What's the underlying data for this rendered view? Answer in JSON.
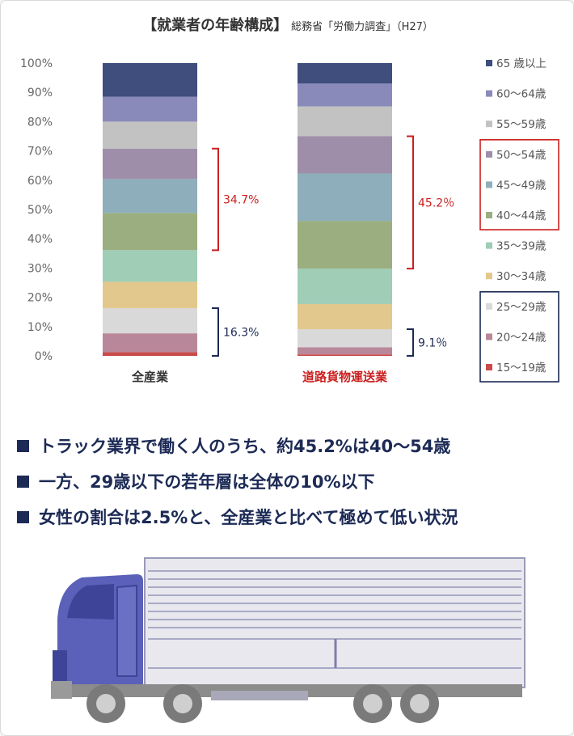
{
  "header": {
    "title": "【就業者の年齢構成】",
    "source": "総務省「労働力調査」（H27）"
  },
  "chart_data": {
    "type": "bar",
    "stacked": true,
    "ylim": [
      0,
      100
    ],
    "yticks": [
      "0%",
      "10%",
      "20%",
      "30%",
      "40%",
      "50%",
      "60%",
      "70%",
      "80%",
      "90%",
      "100%"
    ],
    "categories": [
      "全産業",
      "道路貨物運送業"
    ],
    "category_colors": [
      "#333333",
      "#cc1f1f"
    ],
    "series": [
      {
        "name": "15～19歳",
        "color": "#c94a4a",
        "values": [
          1.3,
          0.5
        ]
      },
      {
        "name": "20～24歳",
        "color": "#b9879a",
        "values": [
          6.4,
          2.4
        ]
      },
      {
        "name": "25～29歳",
        "color": "#d9d9d9",
        "values": [
          8.6,
          6.2
        ]
      },
      {
        "name": "30～34歳",
        "color": "#e2c88c",
        "values": [
          9.0,
          8.6
        ]
      },
      {
        "name": "35～39歳",
        "color": "#9fcdb6",
        "values": [
          10.8,
          12.1
        ]
      },
      {
        "name": "40～44歳",
        "color": "#9aae7f",
        "values": [
          12.7,
          16.3
        ]
      },
      {
        "name": "45～49歳",
        "color": "#8eaebb",
        "values": [
          11.6,
          16.2
        ]
      },
      {
        "name": "50～54歳",
        "color": "#9e8eaa",
        "values": [
          10.4,
          12.7
        ]
      },
      {
        "name": "55～59歳",
        "color": "#c2c2c2",
        "values": [
          9.2,
          10.2
        ]
      },
      {
        "name": "60～64歳",
        "color": "#8a8aba",
        "values": [
          8.5,
          7.8
        ]
      },
      {
        "name": "65 歳以上",
        "color": "#3f4e7c",
        "values": [
          11.5,
          7.0
        ]
      }
    ],
    "legend_position": "right",
    "annotations": [
      {
        "category": 0,
        "label": "34.7%",
        "from": 36.1,
        "to": 70.8,
        "color": "#cc1f1f"
      },
      {
        "category": 0,
        "label": "16.3%",
        "from": 0,
        "to": 16.3,
        "color": "#1c2a55"
      },
      {
        "category": 1,
        "label": "45.2％",
        "from": 29.8,
        "to": 75.0,
        "color": "#cc1f1f"
      },
      {
        "category": 1,
        "label": "9.1％",
        "from": 0,
        "to": 9.1,
        "color": "#1c2a55"
      }
    ],
    "legend_groups": [
      {
        "series": [
          5,
          6,
          7
        ],
        "color": "#cc1f1f"
      },
      {
        "series": [
          0,
          1,
          2
        ],
        "color": "#1c2a55"
      }
    ]
  },
  "bullets": [
    "トラック業界で働く人のうち、約45.2%は40～54歳",
    "一方、29歳以下の若年層は全体の10%以下",
    "女性の割合は2.5%と、全産業と比べて極めて低い状況"
  ],
  "truck_colors": {
    "cab": "#5b61b8",
    "box": "#e8e8ee",
    "chassis": "#8c8c8c"
  }
}
